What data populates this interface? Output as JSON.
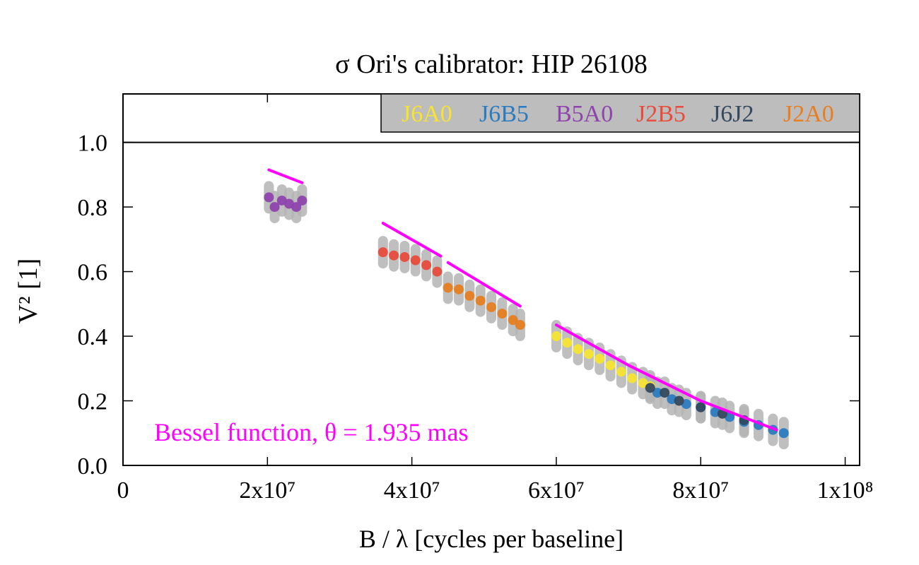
{
  "chart_data": {
    "type": "scatter",
    "title": "σ Ori's calibrator: HIP 26108",
    "xlabel": "B / λ [cycles per baseline]",
    "ylabel": "V² [1]",
    "xlim": [
      0,
      102000000
    ],
    "ylim": [
      0,
      1.15
    ],
    "x_ticks": [
      {
        "value": 0,
        "label": "0"
      },
      {
        "value": 20000000,
        "label": "2x10⁷"
      },
      {
        "value": 40000000,
        "label": "4x10⁷"
      },
      {
        "value": 60000000,
        "label": "6x10⁷"
      },
      {
        "value": 80000000,
        "label": "8x10⁷"
      },
      {
        "value": 100000000,
        "label": "1x10⁸"
      }
    ],
    "y_ticks": [
      {
        "value": 0.0,
        "label": "0.0"
      },
      {
        "value": 0.2,
        "label": "0.2"
      },
      {
        "value": 0.4,
        "label": "0.4"
      },
      {
        "value": 0.6,
        "label": "0.6"
      },
      {
        "value": 0.8,
        "label": "0.8"
      },
      {
        "value": 1.0,
        "label": "1.0"
      }
    ],
    "reference_line": {
      "y": 1.0
    },
    "legend_position": "top-right",
    "legend_background": "#bdbdbd",
    "annotation": {
      "text": "Bessel function, θ = 1.935 mas",
      "color": "#ff00ff"
    },
    "series": [
      {
        "name": "J6A0",
        "color": "#f5e431",
        "values": [
          [
            60000000,
            0.4
          ],
          [
            61500000,
            0.38
          ],
          [
            63000000,
            0.36
          ],
          [
            64500000,
            0.345
          ],
          [
            66000000,
            0.33
          ],
          [
            67500000,
            0.31
          ],
          [
            69000000,
            0.29
          ],
          [
            70500000,
            0.27
          ],
          [
            72000000,
            0.255
          ],
          [
            73000000,
            0.245
          ]
        ]
      },
      {
        "name": "J6B5",
        "color": "#2b7bbf",
        "values": [
          [
            74000000,
            0.225
          ],
          [
            76000000,
            0.205
          ],
          [
            78000000,
            0.19
          ],
          [
            80000000,
            0.18
          ],
          [
            82000000,
            0.165
          ],
          [
            84000000,
            0.15
          ],
          [
            86000000,
            0.135
          ],
          [
            88000000,
            0.125
          ],
          [
            90000000,
            0.11
          ],
          [
            91500000,
            0.1
          ]
        ]
      },
      {
        "name": "B5A0",
        "color": "#8e44ad",
        "values": [
          [
            20200000,
            0.83
          ],
          [
            21000000,
            0.8
          ],
          [
            22000000,
            0.82
          ],
          [
            23000000,
            0.81
          ],
          [
            24000000,
            0.8
          ],
          [
            24800000,
            0.82
          ]
        ]
      },
      {
        "name": "J2B5",
        "color": "#e74c3c",
        "values": [
          [
            36000000,
            0.66
          ],
          [
            37500000,
            0.65
          ],
          [
            39000000,
            0.645
          ],
          [
            40500000,
            0.635
          ],
          [
            42000000,
            0.62
          ],
          [
            43500000,
            0.6
          ]
        ]
      },
      {
        "name": "J6J2",
        "color": "#34495e",
        "values": [
          [
            73000000,
            0.24
          ],
          [
            75000000,
            0.225
          ],
          [
            77000000,
            0.2
          ],
          [
            80000000,
            0.18
          ],
          [
            83000000,
            0.16
          ],
          [
            86000000,
            0.14
          ]
        ]
      },
      {
        "name": "J2A0",
        "color": "#e67e22",
        "values": [
          [
            45000000,
            0.55
          ],
          [
            46500000,
            0.545
          ],
          [
            48000000,
            0.525
          ],
          [
            49500000,
            0.51
          ],
          [
            51000000,
            0.49
          ],
          [
            52500000,
            0.47
          ],
          [
            54000000,
            0.45
          ],
          [
            55000000,
            0.435
          ]
        ]
      }
    ],
    "model_segments": [
      {
        "name": "Bessel function",
        "color": "#ff00ff",
        "points": [
          [
            20200000,
            0.915
          ],
          [
            24800000,
            0.875
          ]
        ]
      },
      {
        "name": "Bessel function",
        "color": "#ff00ff",
        "points": [
          [
            36000000,
            0.75
          ],
          [
            44000000,
            0.648
          ]
        ]
      },
      {
        "name": "Bessel function",
        "color": "#ff00ff",
        "points": [
          [
            45000000,
            0.628
          ],
          [
            55000000,
            0.493
          ]
        ]
      },
      {
        "name": "Bessel function",
        "color": "#ff00ff",
        "points": [
          [
            60000000,
            0.435
          ],
          [
            70000000,
            0.31
          ],
          [
            80000000,
            0.2
          ],
          [
            90500000,
            0.11
          ]
        ]
      }
    ]
  }
}
